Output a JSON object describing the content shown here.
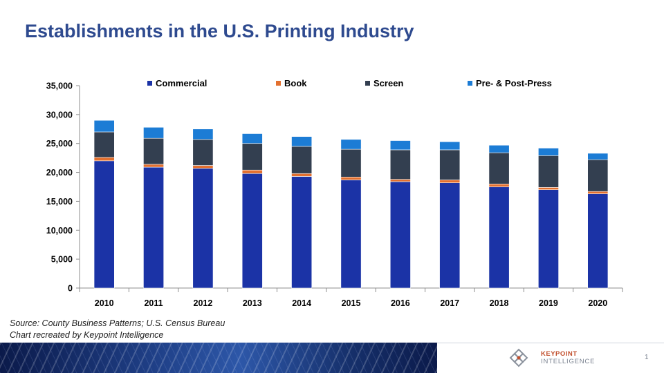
{
  "slide": {
    "title": "Establishments in the U.S. Printing Industry",
    "source_line1": "Source: County Business Patterns; U.S. Census Bureau",
    "source_line2": "Chart recreated by Keypoint Intelligence",
    "page_number": "1",
    "logo_line1": "KEYPOINT",
    "logo_line2": "INTELLIGENCE"
  },
  "colors": {
    "title": "#2E4A8F",
    "commercial": "#1B33A6",
    "book": "#E3702F",
    "screen": "#333F50",
    "prepost": "#1C7CD5"
  },
  "chart_data": {
    "type": "bar",
    "stacked": true,
    "categories": [
      "2010",
      "2011",
      "2012",
      "2013",
      "2014",
      "2015",
      "2016",
      "2017",
      "2018",
      "2019",
      "2020"
    ],
    "series": [
      {
        "name": "Commercial",
        "color": "#1B33A6",
        "values": [
          22000,
          20900,
          20700,
          19800,
          19300,
          18700,
          18400,
          18200,
          17500,
          17000,
          16300
        ]
      },
      {
        "name": "Book",
        "color": "#E3702F",
        "values": [
          600,
          500,
          500,
          600,
          500,
          500,
          400,
          500,
          500,
          400,
          400
        ]
      },
      {
        "name": "Screen",
        "color": "#333F50",
        "values": [
          4400,
          4500,
          4500,
          4600,
          4700,
          4800,
          5100,
          5200,
          5400,
          5500,
          5500
        ]
      },
      {
        "name": "Pre- & Post-Press",
        "color": "#1C7CD5",
        "values": [
          2000,
          1900,
          1800,
          1700,
          1700,
          1700,
          1600,
          1400,
          1300,
          1300,
          1100
        ]
      }
    ],
    "yticks": [
      "0",
      "5,000",
      "10,000",
      "15,000",
      "20,000",
      "25,000",
      "30,000",
      "35,000"
    ],
    "ylim": [
      0,
      35000
    ],
    "legend_position": "top",
    "grid": false
  }
}
